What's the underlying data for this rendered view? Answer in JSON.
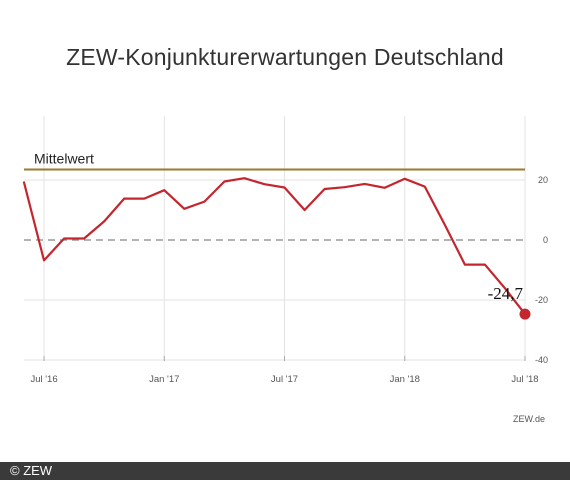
{
  "chart_data": {
    "type": "line",
    "title": "ZEW-Konjunkturerwartungen Deutschland",
    "x": [
      "2016-06",
      "2016-07",
      "2016-08",
      "2016-09",
      "2016-10",
      "2016-11",
      "2016-12",
      "2017-01",
      "2017-02",
      "2017-03",
      "2017-04",
      "2017-05",
      "2017-06",
      "2017-07",
      "2017-08",
      "2017-09",
      "2017-10",
      "2017-11",
      "2017-12",
      "2018-01",
      "2018-02",
      "2018-03",
      "2018-04",
      "2018-05",
      "2018-06",
      "2018-07"
    ],
    "series": [
      {
        "values": [
          19.2,
          -6.8,
          0.5,
          0.5,
          6.2,
          13.8,
          13.8,
          16.6,
          10.4,
          12.8,
          19.5,
          20.6,
          18.6,
          17.5,
          10.0,
          17.0,
          17.6,
          18.7,
          17.4,
          20.4,
          17.8,
          5.1,
          -8.2,
          -8.2,
          -16.1,
          -24.7
        ],
        "color": "#c4262e"
      }
    ],
    "mean": {
      "label": "Mittelwert",
      "value": 23.5,
      "color": "#9a7a2e"
    },
    "zero_line": {
      "style": "dashed",
      "color": "#999999"
    },
    "last_value_label": "-24,7",
    "ylim": [
      -40,
      30
    ],
    "yticks": [
      20,
      0,
      -20,
      -40
    ],
    "ytick_labels": [
      "20",
      "0",
      "-20",
      "-40"
    ],
    "xticks": [
      "2016-07",
      "2017-01",
      "2017-07",
      "2018-01",
      "2018-07"
    ],
    "xtick_labels": [
      "Jul '16",
      "Jan '17",
      "Jul '17",
      "Jan '18",
      "Jul '18"
    ],
    "grid": true,
    "source": "ZEW.de"
  },
  "footer": {
    "copyright": "© ZEW"
  }
}
